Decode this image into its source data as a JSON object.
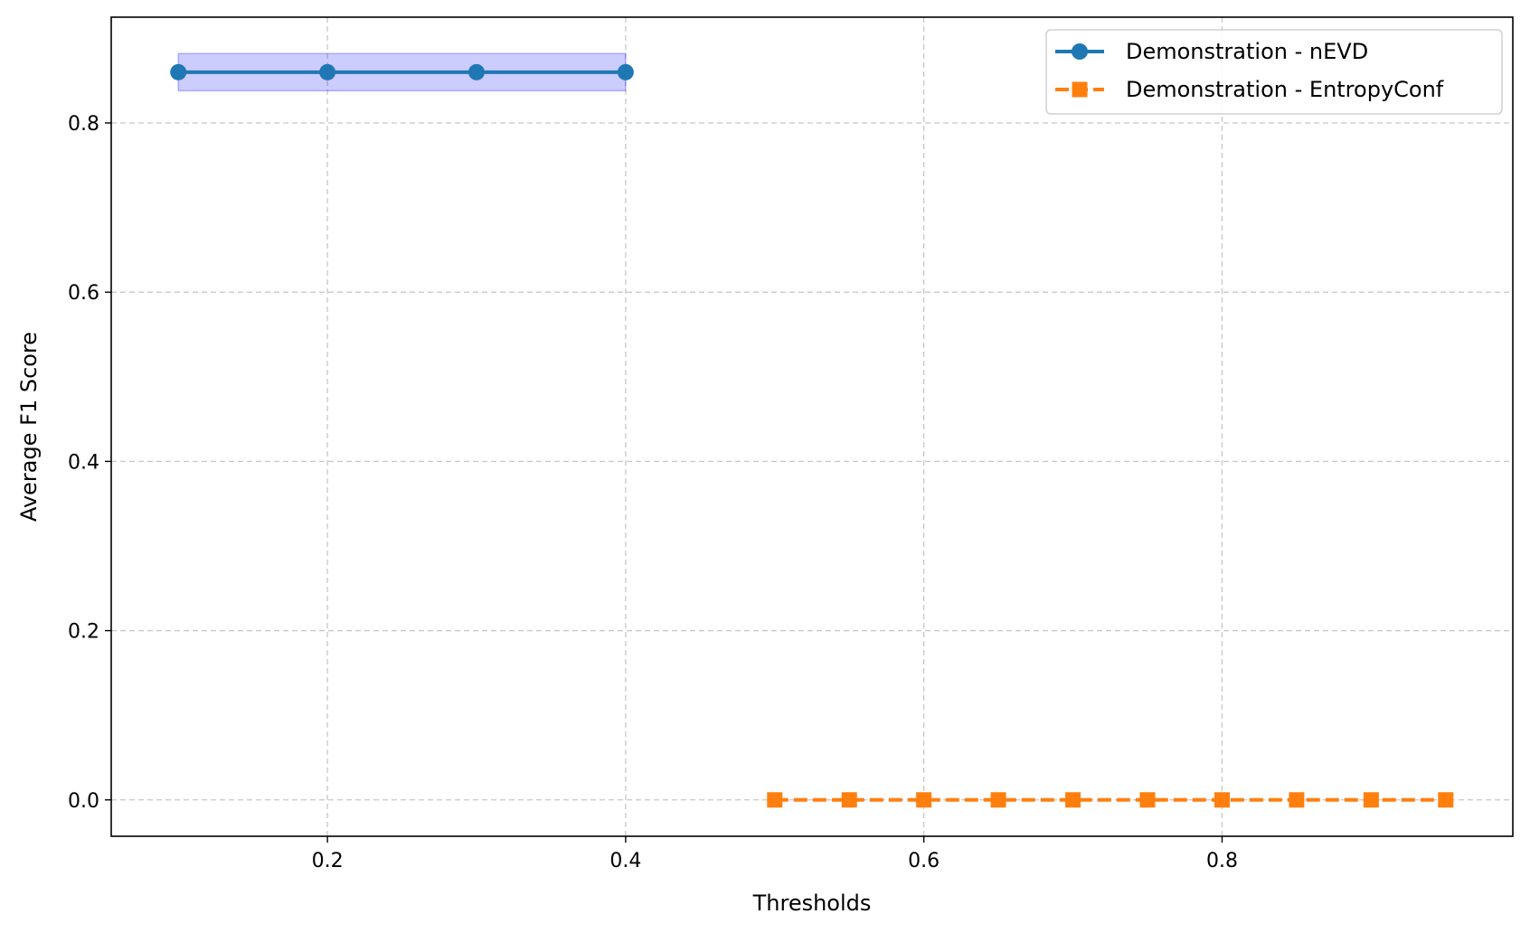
{
  "chart_data": {
    "type": "line",
    "title": "",
    "xlabel": "Thresholds",
    "ylabel": "Average F1 Score",
    "xlim": [
      0.055,
      0.995
    ],
    "ylim": [
      -0.043,
      0.925
    ],
    "x_ticks": [
      0.2,
      0.4,
      0.6,
      0.8
    ],
    "y_ticks": [
      0.0,
      0.2,
      0.4,
      0.6,
      0.8
    ],
    "x_tick_labels": [
      "0.2",
      "0.4",
      "0.6",
      "0.8"
    ],
    "y_tick_labels": [
      "0.0",
      "0.2",
      "0.4",
      "0.6",
      "0.8"
    ],
    "grid": true,
    "legend_position": "top-right",
    "series": [
      {
        "name": "Demonstration - nEVD",
        "color": "#1f77b4",
        "marker": "circle",
        "line_style": "solid",
        "x": [
          0.1,
          0.2,
          0.3,
          0.4
        ],
        "y": [
          0.86,
          0.86,
          0.86,
          0.86
        ],
        "band": {
          "color": "#0000ff",
          "lower": [
            0.838,
            0.838,
            0.838,
            0.838
          ],
          "upper": [
            0.882,
            0.882,
            0.882,
            0.882
          ]
        }
      },
      {
        "name": "Demonstration - EntropyConf",
        "color": "#ff7f0e",
        "marker": "square",
        "line_style": "dashed",
        "x": [
          0.5,
          0.55,
          0.6,
          0.65,
          0.7,
          0.75,
          0.8,
          0.85,
          0.9,
          0.95
        ],
        "y": [
          0,
          0,
          0,
          0,
          0,
          0,
          0,
          0,
          0,
          0
        ]
      }
    ]
  }
}
